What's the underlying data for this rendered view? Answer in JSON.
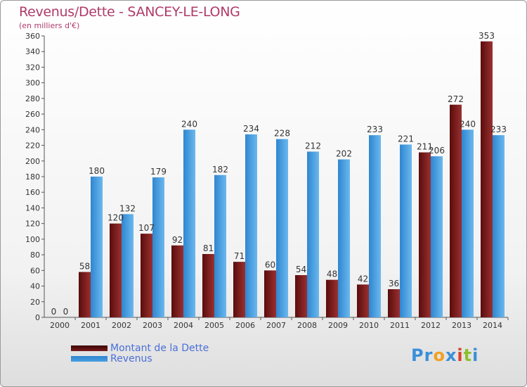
{
  "title": "Revenus/Dette - SANCEY-LE-LONG",
  "subtitle": "(en milliers d'€)",
  "logo": {
    "text": "Proxiti",
    "letters": [
      "P",
      "r",
      "o",
      "x",
      "i",
      "t",
      "i"
    ],
    "colors": [
      "#3a8fd8",
      "#3a8fd8",
      "#f2a020",
      "#3a8fd8",
      "#d8402a",
      "#8ac030",
      "#3a8fd8"
    ]
  },
  "colors": {
    "dette": "#7a1a1a",
    "revenus": "#4a9fe0"
  },
  "chart_data": {
    "type": "bar",
    "categories": [
      "2000",
      "2001",
      "2002",
      "2003",
      "2004",
      "2005",
      "2006",
      "2007",
      "2008",
      "2009",
      "2010",
      "2011",
      "2012",
      "2013",
      "2014"
    ],
    "series": [
      {
        "name": "Montant de la Dette",
        "values": [
          0,
          58,
          120,
          107,
          92,
          81,
          71,
          60,
          54,
          48,
          42,
          36,
          211,
          272,
          353
        ]
      },
      {
        "name": "Revenus",
        "values": [
          0,
          180,
          132,
          179,
          240,
          182,
          234,
          228,
          212,
          202,
          233,
          221,
          206,
          240,
          233
        ]
      }
    ],
    "ylim": [
      0,
      360
    ],
    "yticks": [
      0,
      20,
      40,
      60,
      80,
      100,
      120,
      140,
      160,
      180,
      200,
      220,
      240,
      260,
      280,
      300,
      320,
      340,
      360
    ],
    "grid": false,
    "legend_position": "bottom-left"
  }
}
